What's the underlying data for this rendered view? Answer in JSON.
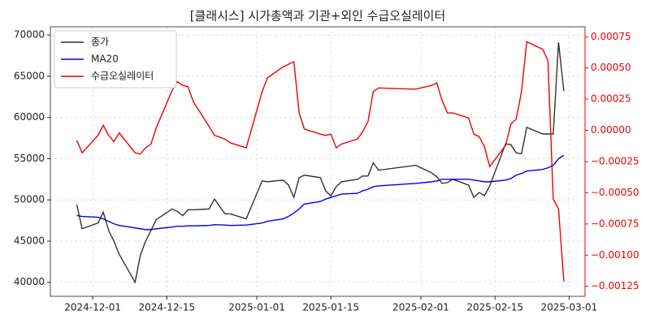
{
  "chart_data": {
    "type": "line",
    "title": "[클래시스] 시가총액과 기관+외인 수급오실레이터",
    "x": [
      "2024-11-28",
      "2024-11-29",
      "2024-12-02",
      "2024-12-03",
      "2024-12-04",
      "2024-12-05",
      "2024-12-06",
      "2024-12-09",
      "2024-12-10",
      "2024-12-11",
      "2024-12-12",
      "2024-12-13",
      "2024-12-16",
      "2024-12-17",
      "2024-12-18",
      "2024-12-19",
      "2024-12-20",
      "2024-12-23",
      "2024-12-24",
      "2024-12-26",
      "2024-12-27",
      "2024-12-30",
      "2025-01-02",
      "2025-01-03",
      "2025-01-06",
      "2025-01-07",
      "2025-01-08",
      "2025-01-09",
      "2025-01-10",
      "2025-01-13",
      "2025-01-14",
      "2025-01-15",
      "2025-01-16",
      "2025-01-17",
      "2025-01-20",
      "2025-01-21",
      "2025-01-22",
      "2025-01-23",
      "2025-01-24",
      "2025-01-31",
      "2025-02-03",
      "2025-02-04",
      "2025-02-05",
      "2025-02-06",
      "2025-02-07",
      "2025-02-10",
      "2025-02-11",
      "2025-02-12",
      "2025-02-13",
      "2025-02-14",
      "2025-02-17",
      "2025-02-18",
      "2025-02-19",
      "2025-02-20",
      "2025-02-21",
      "2025-02-24",
      "2025-02-25",
      "2025-02-26",
      "2025-02-27",
      "2025-02-28"
    ],
    "series": [
      {
        "name": "종가",
        "color": "#333333",
        "values": [
          49400,
          46500,
          47200,
          48500,
          46300,
          45000,
          43400,
          40000,
          43300,
          45000,
          46300,
          47600,
          48900,
          48600,
          48100,
          48800,
          48800,
          48900,
          50100,
          48300,
          48300,
          47700,
          52300,
          52200,
          52400,
          51800,
          50300,
          52700,
          53000,
          52700,
          51100,
          50500,
          51600,
          52200,
          52500,
          52900,
          52900,
          54500,
          53600,
          54200,
          53300,
          52800,
          52000,
          52100,
          52500,
          51800,
          50300,
          50900,
          50500,
          51700,
          56800,
          56700,
          55700,
          55600,
          58800,
          58000,
          58000,
          58000,
          69100,
          63200
        ]
      },
      {
        "name": "MA20",
        "color": "#0000ee",
        "values": [
          48100,
          48000,
          47900,
          47700,
          47400,
          47100,
          46900,
          46600,
          46500,
          46400,
          46400,
          46500,
          46700,
          46800,
          46800,
          46850,
          46850,
          46900,
          47000,
          46950,
          46900,
          46950,
          47200,
          47400,
          47700,
          48000,
          48400,
          48900,
          49500,
          49800,
          50100,
          50300,
          50500,
          50700,
          50800,
          51100,
          51300,
          51600,
          51700,
          52000,
          52200,
          52300,
          52500,
          52500,
          52500,
          52500,
          52400,
          52300,
          52200,
          52200,
          52400,
          52600,
          53000,
          53200,
          53500,
          53700,
          53900,
          54200,
          55000,
          55400
        ]
      },
      {
        "name": "수급오실레이터",
        "color": "#ee0000",
        "axis": "y2",
        "values": [
          -8e-05,
          -0.00018,
          -4e-05,
          4e-05,
          -4e-05,
          -9e-05,
          -2e-05,
          -0.00018,
          -0.00019,
          -0.00014,
          -0.00011,
          2e-05,
          0.00032,
          0.00039,
          0.00036,
          0.00035,
          0.00023,
          3e-05,
          -4e-05,
          -7e-05,
          -0.0001,
          -0.00014,
          0.00031,
          0.00042,
          0.00051,
          0.00053,
          0.00055,
          0.00014,
          1e-05,
          -3e-05,
          -4e-05,
          -3e-05,
          -0.00014,
          -0.00011,
          -7e-05,
          -1e-05,
          7e-05,
          0.00031,
          0.00034,
          0.00033,
          0.00036,
          0.00038,
          0.00024,
          0.00014,
          0.00014,
          0.0001,
          -3e-05,
          -5e-05,
          -0.00013,
          -0.00029,
          -0.00012,
          5e-05,
          9e-05,
          0.00031,
          0.00071,
          0.00065,
          0.00056,
          -0.00055,
          -0.00063,
          -0.00121
        ]
      }
    ],
    "xlim": [
      "2024-11-23",
      "2025-03-04"
    ],
    "xticks": [
      "2024-12-01",
      "2024-12-15",
      "2025-01-01",
      "2025-01-15",
      "2025-02-01",
      "2025-02-15",
      "2025-03-01"
    ],
    "ylim": [
      38300,
      71000
    ],
    "yticks": [
      40000,
      45000,
      50000,
      55000,
      60000,
      65000,
      70000
    ],
    "y2lim": [
      -0.00133,
      0.00083
    ],
    "y2ticks": [
      {
        "value": -0.00125,
        "label": "−0.00125"
      },
      {
        "value": -0.001,
        "label": "−0.00100"
      },
      {
        "value": -0.00075,
        "label": "−0.00075"
      },
      {
        "value": -0.0005,
        "label": "−0.00050"
      },
      {
        "value": -0.00025,
        "label": "−0.00025"
      },
      {
        "value": 0,
        "label": "0.00000"
      },
      {
        "value": 0.00025,
        "label": "0.00025"
      },
      {
        "value": 0.0005,
        "label": "0.00050"
      },
      {
        "value": 0.00075,
        "label": "0.00075"
      }
    ],
    "y2color": "#ee0000",
    "grid": true,
    "legend": "upper left"
  }
}
